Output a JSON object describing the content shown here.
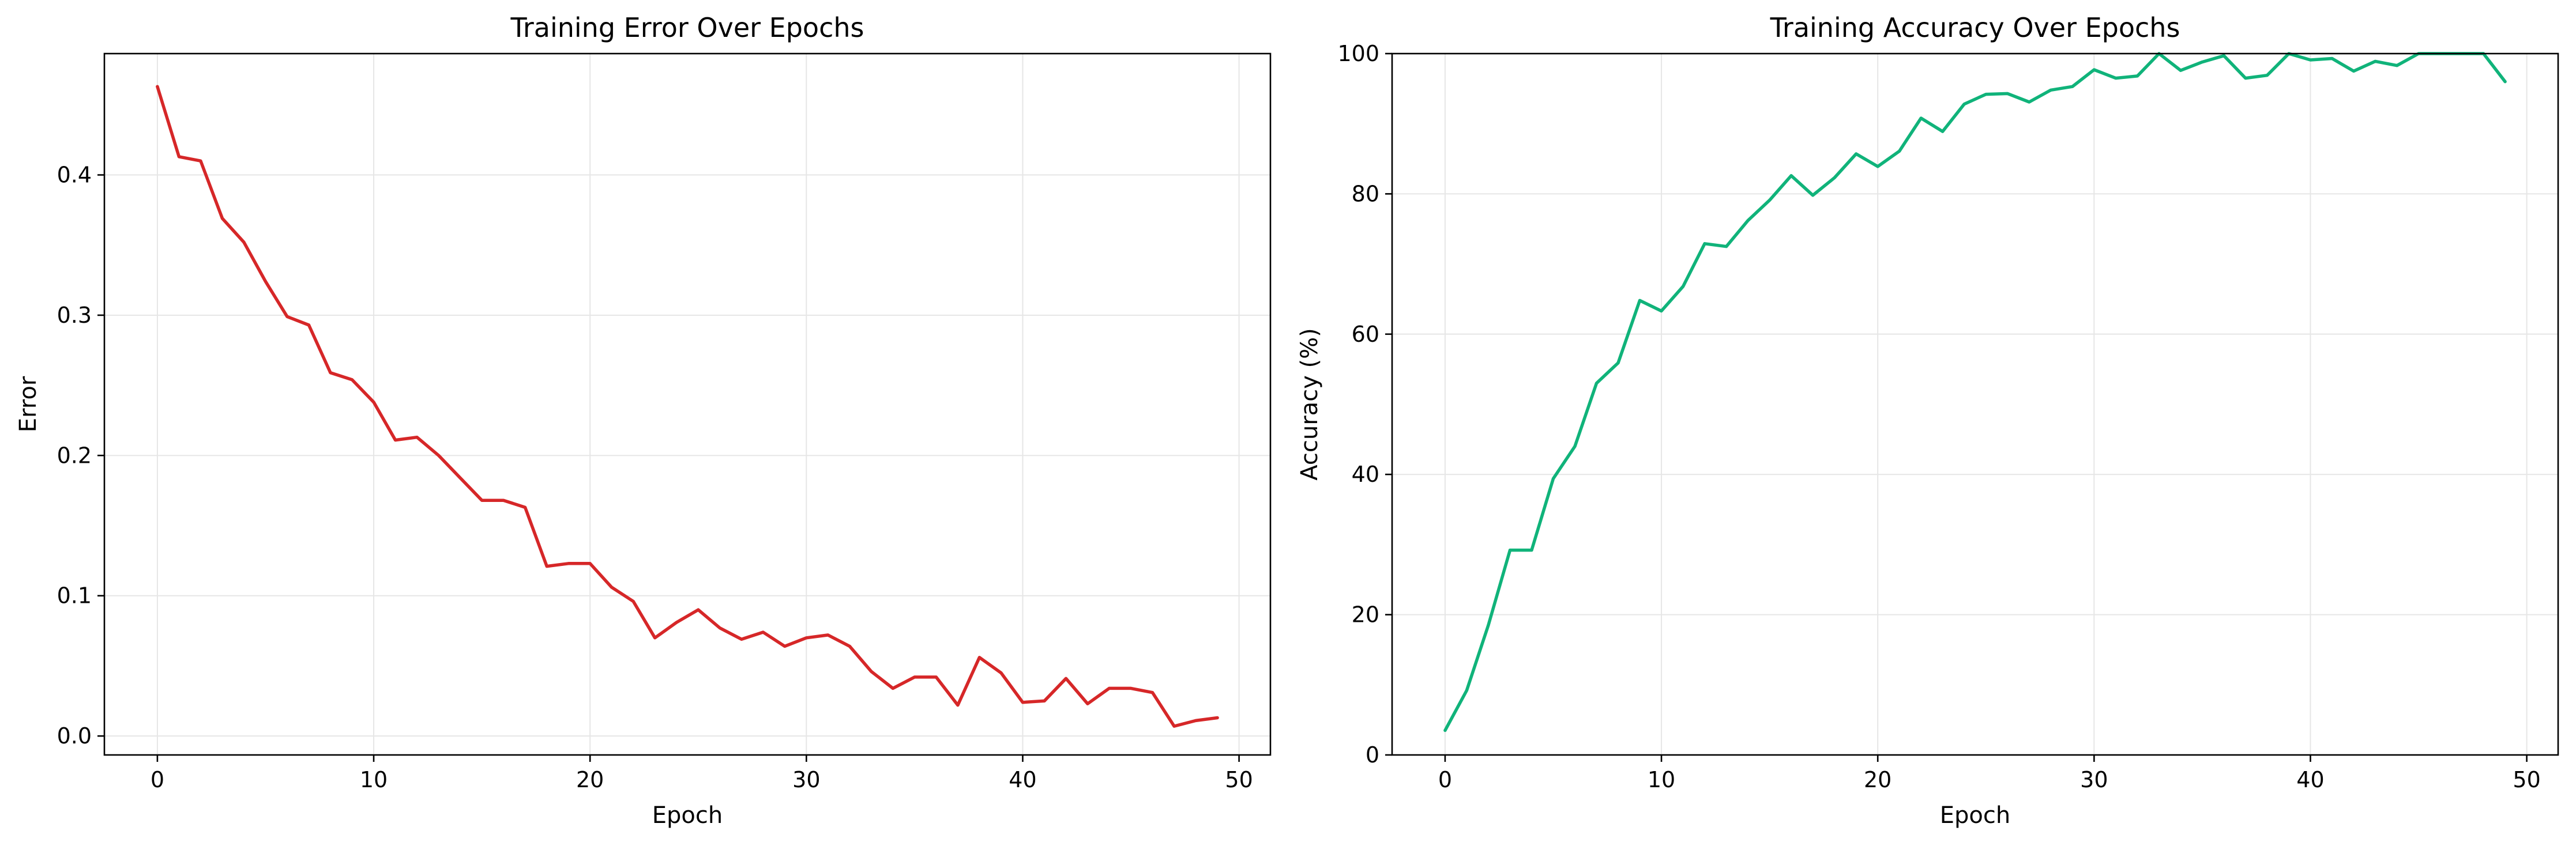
{
  "colors": {
    "error_line": "#d62728",
    "accuracy_line": "#10b37a",
    "grid": "#e6e6e6",
    "axis": "#000000"
  },
  "chart_data": [
    {
      "type": "line",
      "title": "Training Error Over Epochs",
      "xlabel": "Epoch",
      "ylabel": "Error",
      "xlim": [
        -2.45,
        51.45
      ],
      "ylim": [
        -0.0135,
        0.4865
      ],
      "xticks": [
        0,
        10,
        20,
        30,
        40,
        50
      ],
      "yticks": [
        0.0,
        0.1,
        0.2,
        0.3,
        0.4
      ],
      "ytick_labels": [
        "0.0",
        "0.1",
        "0.2",
        "0.3",
        "0.4"
      ],
      "grid": true,
      "series": [
        {
          "x": [
            0,
            1,
            2,
            3,
            4,
            5,
            6,
            7,
            8,
            9,
            10,
            11,
            12,
            13,
            14,
            15,
            16,
            17,
            18,
            19,
            20,
            21,
            22,
            23,
            24,
            25,
            26,
            27,
            28,
            29,
            30,
            31,
            32,
            33,
            34,
            35,
            36,
            37,
            38,
            39,
            40,
            41,
            42,
            43,
            44,
            45,
            46,
            47,
            48,
            49
          ],
          "values": [
            0.463,
            0.413,
            0.41,
            0.369,
            0.352,
            0.324,
            0.299,
            0.293,
            0.259,
            0.254,
            0.238,
            0.211,
            0.213,
            0.2,
            0.184,
            0.168,
            0.168,
            0.163,
            0.121,
            0.123,
            0.123,
            0.106,
            0.096,
            0.07,
            0.081,
            0.09,
            0.077,
            0.069,
            0.074,
            0.064,
            0.07,
            0.072,
            0.064,
            0.046,
            0.034,
            0.042,
            0.042,
            0.022,
            0.056,
            0.045,
            0.024,
            0.025,
            0.041,
            0.023,
            0.034,
            0.034,
            0.031,
            0.007,
            0.011,
            0.013
          ]
        }
      ]
    },
    {
      "type": "line",
      "title": "Training Accuracy Over Epochs",
      "xlabel": "Epoch",
      "ylabel": "Accuracy (%)",
      "xlim": [
        -2.45,
        51.45
      ],
      "ylim": [
        0,
        100
      ],
      "xticks": [
        0,
        10,
        20,
        30,
        40,
        50
      ],
      "yticks": [
        0,
        20,
        40,
        60,
        80,
        100
      ],
      "ytick_labels": [
        "0",
        "20",
        "40",
        "60",
        "80",
        "100"
      ],
      "grid": true,
      "series": [
        {
          "x": [
            0,
            1,
            2,
            3,
            4,
            5,
            6,
            7,
            8,
            9,
            10,
            11,
            12,
            13,
            14,
            15,
            16,
            17,
            18,
            19,
            20,
            21,
            22,
            23,
            24,
            25,
            26,
            27,
            28,
            29,
            30,
            31,
            32,
            33,
            34,
            35,
            36,
            37,
            38,
            39,
            40,
            41,
            42,
            43,
            44,
            45,
            46,
            47,
            48,
            49
          ],
          "values": [
            3.5,
            9.2,
            18.5,
            29.2,
            29.2,
            39.4,
            44.0,
            53.0,
            55.9,
            64.8,
            63.3,
            66.8,
            72.9,
            72.5,
            76.2,
            79.1,
            82.6,
            79.8,
            82.3,
            85.7,
            83.9,
            86.1,
            90.8,
            88.9,
            92.8,
            94.2,
            94.3,
            93.1,
            94.8,
            95.3,
            97.7,
            96.5,
            96.8,
            100.0,
            97.6,
            98.8,
            99.7,
            96.5,
            96.9,
            100.0,
            99.1,
            99.3,
            97.5,
            98.9,
            98.3,
            100.0,
            100.0,
            100.0,
            100.0,
            96.0
          ]
        }
      ]
    }
  ]
}
